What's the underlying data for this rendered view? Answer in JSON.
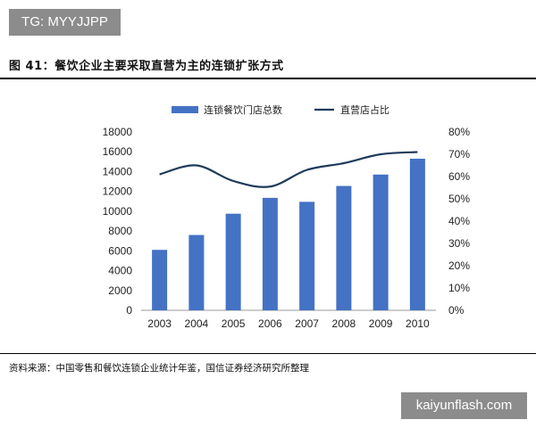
{
  "watermark_top": "TG: MYYJJPP",
  "watermark_bottom": "kaiyunflash.com",
  "figure_title": "图 41：餐饮企业主要采取直营为主的连锁扩张方式",
  "source": "资料来源：中国零售和餐饮连锁企业统计年鉴，国信证券经济研究所整理",
  "colors": {
    "bar": "#4472c4",
    "line": "#1f3b5c"
  },
  "chart_data": {
    "type": "bar",
    "categories": [
      "2003",
      "2004",
      "2005",
      "2006",
      "2007",
      "2008",
      "2009",
      "2010"
    ],
    "series": [
      {
        "name": "连锁餐饮门店总数",
        "type": "bar",
        "axis": "left",
        "values": [
          6100,
          7600,
          9750,
          11350,
          10950,
          12550,
          13700,
          15300
        ]
      },
      {
        "name": "直营店占比",
        "type": "line",
        "axis": "right",
        "values": [
          0.61,
          0.65,
          0.58,
          0.555,
          0.63,
          0.66,
          0.7,
          0.71
        ]
      }
    ],
    "y_left": {
      "min": 0,
      "max": 18000,
      "step": 2000,
      "ticks": [
        "0",
        "2000",
        "4000",
        "6000",
        "8000",
        "10000",
        "12000",
        "14000",
        "16000",
        "18000"
      ]
    },
    "y_right": {
      "min": 0,
      "max": 0.8,
      "step": 0.1,
      "ticks": [
        "0%",
        "10%",
        "20%",
        "30%",
        "40%",
        "50%",
        "60%",
        "70%",
        "80%"
      ]
    },
    "legend_position": "top",
    "grid": false
  }
}
